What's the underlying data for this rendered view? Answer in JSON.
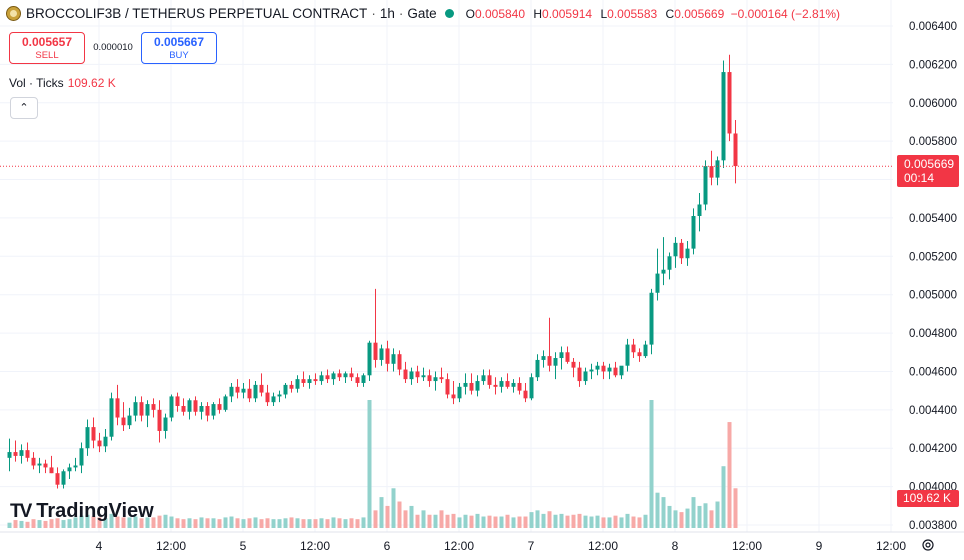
{
  "header": {
    "symbol": "BROCCOLIF3B / TETHERUS PERPETUAL CONTRACT",
    "sep1": "·",
    "interval": "1h",
    "sep2": "·",
    "exchange": "Gate",
    "open_key": "O",
    "open": "0.005840",
    "high_key": "H",
    "high": "0.005914",
    "low_key": "L",
    "low": "0.005583",
    "close_key": "C",
    "close": "0.005669",
    "change": "−0.000164 (−2.81%)",
    "status_color": "#089981"
  },
  "trade": {
    "sell_price": "0.005657",
    "sell_label": "SELL",
    "spread": "0.000010",
    "buy_price": "0.005667",
    "buy_label": "BUY"
  },
  "volume": {
    "label": "Vol · Ticks",
    "value": "109.62 K"
  },
  "collapse_icon": "chevron-up-icon",
  "collapse_glyph": "⌃",
  "logo": {
    "mark": "TV",
    "text": "TradingView"
  },
  "price_tag": {
    "price": "0.005669",
    "countdown": "00:14"
  },
  "vol_tag": "109.62 K",
  "colors": {
    "up": "#089981",
    "down": "#f23645",
    "vol_up": "#92d2cc",
    "vol_down": "#f7a9a7",
    "grid": "#f0f3fa"
  },
  "chart_data": {
    "type": "candlestick",
    "interval": "1h",
    "y_ticks": [
      "0.006400",
      "0.006200",
      "0.006000",
      "0.005800",
      "0.005600",
      "0.005400",
      "0.005200",
      "0.005000",
      "0.004800",
      "0.004600",
      "0.004400",
      "0.004200",
      "0.004000",
      "0.003800"
    ],
    "ylim": [
      0.00376,
      0.00648
    ],
    "x_ticks": [
      {
        "label": "4",
        "i": 15
      },
      {
        "label": "12:00",
        "i": 27
      },
      {
        "label": "5",
        "i": 39
      },
      {
        "label": "12:00",
        "i": 51
      },
      {
        "label": "6",
        "i": 63
      },
      {
        "label": "12:00",
        "i": 75
      },
      {
        "label": "7",
        "i": 87
      },
      {
        "label": "12:00",
        "i": 99
      },
      {
        "label": "8",
        "i": 111
      },
      {
        "label": "12:00",
        "i": 123
      },
      {
        "label": "9",
        "i": 135
      },
      {
        "label": "12:00",
        "i": 147
      }
    ],
    "ohlc": [
      [
        0.00415,
        0.00425,
        0.00408,
        0.00418
      ],
      [
        0.00418,
        0.00424,
        0.00413,
        0.00416
      ],
      [
        0.00416,
        0.00422,
        0.00412,
        0.00419
      ],
      [
        0.00419,
        0.00423,
        0.00413,
        0.00415
      ],
      [
        0.00415,
        0.00418,
        0.00409,
        0.00411
      ],
      [
        0.00411,
        0.00415,
        0.00407,
        0.00412
      ],
      [
        0.00412,
        0.00414,
        0.00407,
        0.0041
      ],
      [
        0.0041,
        0.00416,
        0.00407,
        0.00407
      ],
      [
        0.00407,
        0.0041,
        0.00399,
        0.00401
      ],
      [
        0.00401,
        0.00409,
        0.00399,
        0.00408
      ],
      [
        0.00408,
        0.00412,
        0.00404,
        0.0041
      ],
      [
        0.0041,
        0.00415,
        0.00408,
        0.00411
      ],
      [
        0.00411,
        0.00423,
        0.00407,
        0.0042
      ],
      [
        0.0042,
        0.00435,
        0.00416,
        0.00431
      ],
      [
        0.00431,
        0.00436,
        0.0042,
        0.00424
      ],
      [
        0.00424,
        0.00428,
        0.00418,
        0.00421
      ],
      [
        0.00421,
        0.0043,
        0.00418,
        0.00426
      ],
      [
        0.00426,
        0.00449,
        0.00424,
        0.00446
      ],
      [
        0.00446,
        0.00453,
        0.00432,
        0.00436
      ],
      [
        0.00436,
        0.00444,
        0.00429,
        0.00432
      ],
      [
        0.00432,
        0.00441,
        0.0043,
        0.00437
      ],
      [
        0.00437,
        0.00447,
        0.00434,
        0.00444
      ],
      [
        0.00444,
        0.00447,
        0.00434,
        0.00437
      ],
      [
        0.00437,
        0.00445,
        0.00431,
        0.00443
      ],
      [
        0.00443,
        0.00446,
        0.00436,
        0.0044
      ],
      [
        0.0044,
        0.00445,
        0.00423,
        0.00429
      ],
      [
        0.00429,
        0.00438,
        0.00425,
        0.00436
      ],
      [
        0.00436,
        0.00448,
        0.00434,
        0.00447
      ],
      [
        0.00447,
        0.00449,
        0.00439,
        0.00442
      ],
      [
        0.00442,
        0.00446,
        0.00437,
        0.00439
      ],
      [
        0.00439,
        0.00446,
        0.00435,
        0.00445
      ],
      [
        0.00445,
        0.00447,
        0.00437,
        0.00439
      ],
      [
        0.00439,
        0.00444,
        0.00435,
        0.00442
      ],
      [
        0.00442,
        0.00444,
        0.00434,
        0.00437
      ],
      [
        0.00437,
        0.00444,
        0.00435,
        0.00443
      ],
      [
        0.00443,
        0.00446,
        0.00438,
        0.0044
      ],
      [
        0.0044,
        0.00448,
        0.00439,
        0.00447
      ],
      [
        0.00447,
        0.00454,
        0.00444,
        0.00452
      ],
      [
        0.00452,
        0.00456,
        0.00446,
        0.00449
      ],
      [
        0.00449,
        0.00454,
        0.00446,
        0.00451
      ],
      [
        0.00451,
        0.00456,
        0.00444,
        0.00446
      ],
      [
        0.00446,
        0.00455,
        0.00444,
        0.00453
      ],
      [
        0.00453,
        0.00459,
        0.00447,
        0.00449
      ],
      [
        0.00449,
        0.00453,
        0.00442,
        0.00444
      ],
      [
        0.00444,
        0.00449,
        0.00442,
        0.00447
      ],
      [
        0.00447,
        0.0045,
        0.00444,
        0.00448
      ],
      [
        0.00448,
        0.00454,
        0.00446,
        0.00453
      ],
      [
        0.00453,
        0.00455,
        0.00449,
        0.00451
      ],
      [
        0.00451,
        0.00458,
        0.00449,
        0.00456
      ],
      [
        0.00456,
        0.0046,
        0.00452,
        0.00454
      ],
      [
        0.00454,
        0.00458,
        0.00451,
        0.00456
      ],
      [
        0.00456,
        0.00459,
        0.00453,
        0.00455
      ],
      [
        0.00455,
        0.0046,
        0.00453,
        0.00458
      ],
      [
        0.00458,
        0.00461,
        0.00454,
        0.00456
      ],
      [
        0.00456,
        0.0046,
        0.00453,
        0.00459
      ],
      [
        0.00459,
        0.00461,
        0.00455,
        0.00457
      ],
      [
        0.00457,
        0.0046,
        0.00454,
        0.00459
      ],
      [
        0.00459,
        0.00462,
        0.00455,
        0.00457
      ],
      [
        0.00457,
        0.00459,
        0.00452,
        0.00454
      ],
      [
        0.00454,
        0.00459,
        0.00452,
        0.00458
      ],
      [
        0.00458,
        0.00476,
        0.00455,
        0.00475
      ],
      [
        0.00475,
        0.00503,
        0.00462,
        0.00466
      ],
      [
        0.00466,
        0.00474,
        0.00463,
        0.00472
      ],
      [
        0.00472,
        0.00476,
        0.0046,
        0.00464
      ],
      [
        0.00464,
        0.00472,
        0.0046,
        0.00469
      ],
      [
        0.00469,
        0.00471,
        0.00458,
        0.00461
      ],
      [
        0.00461,
        0.00465,
        0.00454,
        0.00456
      ],
      [
        0.00456,
        0.00462,
        0.00453,
        0.0046
      ],
      [
        0.0046,
        0.00463,
        0.00454,
        0.00457
      ],
      [
        0.00457,
        0.00462,
        0.00455,
        0.00458
      ],
      [
        0.00458,
        0.00461,
        0.00452,
        0.00455
      ],
      [
        0.00455,
        0.0046,
        0.0045,
        0.00457
      ],
      [
        0.00457,
        0.00462,
        0.00454,
        0.00456
      ],
      [
        0.00456,
        0.00459,
        0.00446,
        0.00448
      ],
      [
        0.00448,
        0.00455,
        0.00443,
        0.00446
      ],
      [
        0.00446,
        0.00454,
        0.00444,
        0.00452
      ],
      [
        0.00452,
        0.00459,
        0.00448,
        0.00454
      ],
      [
        0.00454,
        0.00459,
        0.00448,
        0.0045
      ],
      [
        0.0045,
        0.00458,
        0.00447,
        0.00455
      ],
      [
        0.00455,
        0.00461,
        0.00453,
        0.00458
      ],
      [
        0.00458,
        0.00461,
        0.00451,
        0.00453
      ],
      [
        0.00453,
        0.00457,
        0.00448,
        0.00452
      ],
      [
        0.00452,
        0.00457,
        0.00449,
        0.00455
      ],
      [
        0.00455,
        0.00459,
        0.00451,
        0.00452
      ],
      [
        0.00452,
        0.00456,
        0.00449,
        0.00454
      ],
      [
        0.00454,
        0.00457,
        0.00448,
        0.0045
      ],
      [
        0.0045,
        0.00454,
        0.00444,
        0.00446
      ],
      [
        0.00446,
        0.00459,
        0.00445,
        0.00457
      ],
      [
        0.00457,
        0.00469,
        0.00455,
        0.00466
      ],
      [
        0.00466,
        0.00471,
        0.00462,
        0.00468
      ],
      [
        0.00468,
        0.00488,
        0.0046,
        0.00463
      ],
      [
        0.00463,
        0.0047,
        0.00456,
        0.00467
      ],
      [
        0.00467,
        0.00473,
        0.00461,
        0.0047
      ],
      [
        0.0047,
        0.00473,
        0.00464,
        0.00465
      ],
      [
        0.00465,
        0.00467,
        0.00457,
        0.00462
      ],
      [
        0.00462,
        0.00465,
        0.00452,
        0.00455
      ],
      [
        0.00455,
        0.00462,
        0.00453,
        0.0046
      ],
      [
        0.0046,
        0.00464,
        0.00456,
        0.00461
      ],
      [
        0.00461,
        0.00465,
        0.00458,
        0.00463
      ],
      [
        0.00463,
        0.00465,
        0.00456,
        0.0046
      ],
      [
        0.0046,
        0.00464,
        0.00456,
        0.00462
      ],
      [
        0.00462,
        0.00465,
        0.00457,
        0.00458
      ],
      [
        0.00458,
        0.00462,
        0.00456,
        0.00463
      ],
      [
        0.00463,
        0.00477,
        0.0046,
        0.00474
      ],
      [
        0.00474,
        0.00477,
        0.00467,
        0.0047
      ],
      [
        0.0047,
        0.00472,
        0.00465,
        0.00468
      ],
      [
        0.00468,
        0.00476,
        0.00467,
        0.00474
      ],
      [
        0.00474,
        0.00503,
        0.00469,
        0.00501
      ],
      [
        0.00501,
        0.00524,
        0.00497,
        0.00511
      ],
      [
        0.00511,
        0.0053,
        0.00505,
        0.00513
      ],
      [
        0.00513,
        0.00522,
        0.00508,
        0.0052
      ],
      [
        0.0052,
        0.0053,
        0.00514,
        0.00527
      ],
      [
        0.00527,
        0.00529,
        0.00516,
        0.00519
      ],
      [
        0.00519,
        0.00528,
        0.00515,
        0.00524
      ],
      [
        0.00524,
        0.00545,
        0.00521,
        0.00541
      ],
      [
        0.00541,
        0.00553,
        0.00533,
        0.00547
      ],
      [
        0.00547,
        0.0057,
        0.00544,
        0.00567
      ],
      [
        0.00567,
        0.00575,
        0.00557,
        0.00561
      ],
      [
        0.00561,
        0.00572,
        0.00557,
        0.0057
      ],
      [
        0.0057,
        0.00622,
        0.00566,
        0.00616
      ],
      [
        0.00616,
        0.00625,
        0.0058,
        0.00584
      ],
      [
        0.00584,
        0.00591,
        0.00558,
        0.00567
      ]
    ],
    "volume": [
      0.6,
      0.9,
      0.8,
      0.7,
      1.0,
      0.9,
      0.8,
      1.0,
      1.1,
      0.9,
      1.0,
      1.2,
      1.4,
      1.5,
      1.3,
      1.2,
      1.1,
      1.6,
      1.3,
      1.2,
      1.2,
      1.3,
      1.1,
      1.2,
      1.2,
      1.4,
      1.5,
      1.3,
      1.1,
      1.0,
      1.1,
      1.0,
      1.2,
      1.1,
      1.1,
      1.0,
      1.2,
      1.3,
      1.1,
      1.0,
      1.1,
      1.2,
      1.0,
      1.1,
      1.0,
      1.0,
      1.1,
      1.2,
      1.1,
      1.0,
      1.0,
      1.0,
      1.1,
      1.0,
      1.2,
      1.1,
      1.0,
      1.1,
      1.0,
      1.2,
      14.5,
      2.0,
      3.5,
      2.5,
      4.5,
      3.0,
      2.0,
      2.5,
      1.5,
      2.0,
      1.5,
      1.5,
      2.0,
      1.5,
      1.6,
      1.2,
      1.5,
      1.4,
      1.6,
      1.3,
      1.4,
      1.3,
      1.3,
      1.5,
      1.2,
      1.3,
      1.3,
      1.8,
      2.0,
      1.6,
      1.9,
      1.5,
      1.6,
      1.4,
      1.5,
      1.6,
      1.4,
      1.3,
      1.4,
      1.2,
      1.2,
      1.4,
      1.2,
      1.6,
      1.3,
      1.2,
      1.5,
      14.5,
      4.0,
      3.5,
      2.5,
      2.0,
      1.8,
      2.2,
      3.5,
      2.5,
      2.8,
      2.0,
      3.0,
      7.0,
      12.0,
      4.5
    ]
  }
}
